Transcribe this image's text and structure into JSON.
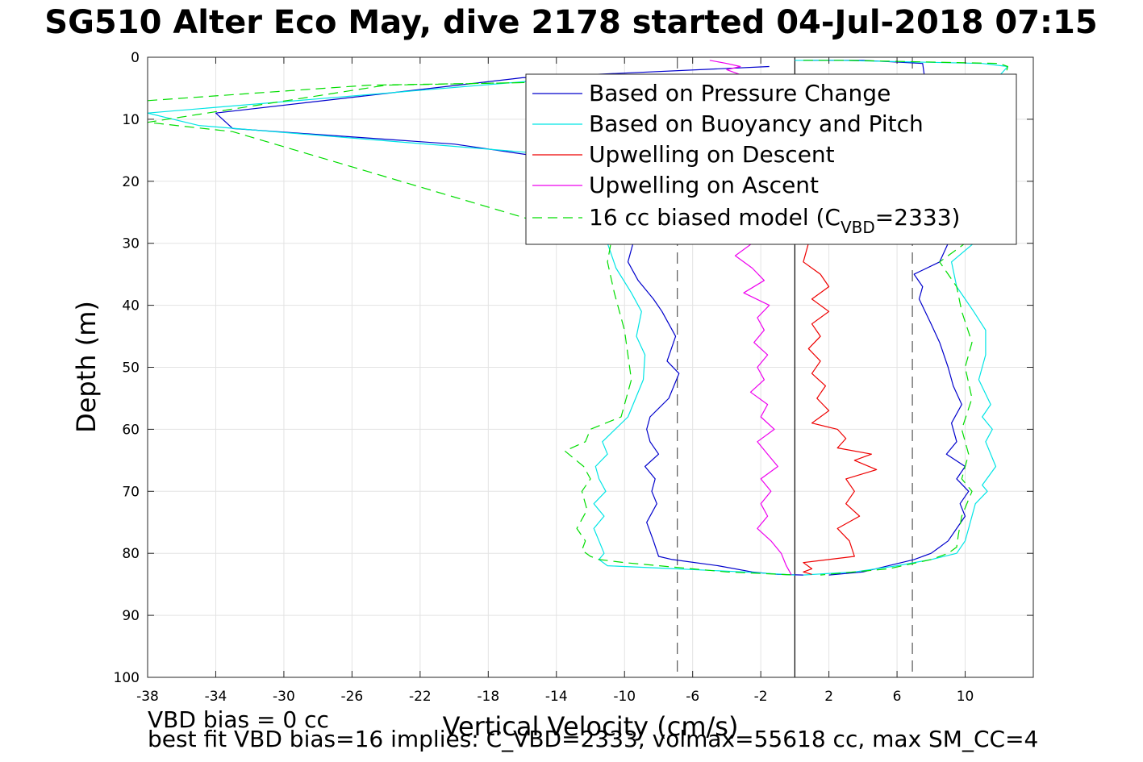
{
  "title": "SG510 Alter Eco May, dive 2178 started 04-Jul-2018 07:15",
  "notes": {
    "vbd_bias": "VBD bias = 0 cc",
    "best_fit": "best fit VBD bias=16 implies: C_VBD=2333, volmax=55618 cc, max SM_CC=4"
  },
  "chart_data": {
    "type": "line",
    "xlabel": "Vertical Velocity (cm/s)",
    "ylabel": "Depth (m)",
    "xlim": [
      -38,
      14
    ],
    "ylim": [
      0,
      100
    ],
    "y_reversed": true,
    "grid": true,
    "xticks": [
      -38,
      -34,
      -30,
      -26,
      -22,
      -18,
      -14,
      -10,
      -6,
      -2,
      2,
      6,
      10
    ],
    "yticks": [
      0,
      10,
      20,
      30,
      40,
      50,
      60,
      70,
      80,
      90,
      100
    ],
    "vertical_lines": [
      {
        "x": -6.9,
        "style": "dashed",
        "color": "#555555"
      },
      {
        "x": 0,
        "style": "solid",
        "color": "#000000"
      },
      {
        "x": 6.9,
        "style": "dashed",
        "color": "#555555"
      }
    ],
    "legend": {
      "location": "top-right",
      "entries": [
        {
          "label": "Based on Pressure Change",
          "color": "#0000cc",
          "style": "solid"
        },
        {
          "label": "Based on Buoyancy and Pitch",
          "color": "#00e5e5",
          "style": "solid"
        },
        {
          "label": "Upwelling on Descent",
          "color": "#ee0000",
          "style": "solid"
        },
        {
          "label": "Upwelling on Ascent",
          "color": "#ee00ee",
          "style": "solid"
        },
        {
          "label_prefix": "16 cc biased model (C",
          "label_sub": "VBD",
          "label_suffix": "=2333)",
          "color": "#00dd00",
          "style": "dashed"
        }
      ]
    },
    "series": [
      {
        "name": "Based on Pressure Change (descent)",
        "color": "#0000cc",
        "style": "solid",
        "x": [
          -1.5,
          -16,
          -34,
          -33,
          -20,
          -15,
          -9.5,
          -9.8,
          -9.2,
          -8.3,
          -7.8,
          -7.0,
          -7.5,
          -6.8,
          -7.4,
          -8.5,
          -8.7,
          -8.5,
          -8.0,
          -8.8,
          -8.2,
          -8.4,
          -8.1,
          -8.7,
          -8.3,
          -8.0,
          -7.2,
          -4.5,
          -2.5,
          -1.0,
          0.5
        ],
        "y": [
          1.5,
          3.3,
          9.0,
          11.5,
          14.0,
          16.0,
          30.0,
          33.0,
          36.0,
          39.0,
          41.0,
          45.0,
          49.0,
          51.0,
          55.0,
          58.0,
          60.0,
          62.0,
          64.0,
          66.0,
          68.0,
          70.0,
          72.0,
          75.0,
          78.0,
          80.5,
          81.0,
          82.0,
          83.0,
          83.4,
          83.5
        ]
      },
      {
        "name": "Based on Pressure Change (ascent)",
        "color": "#0000cc",
        "style": "solid",
        "x": [
          0.5,
          4,
          7.5,
          9.0,
          8.5,
          7.0,
          7.5,
          7.3,
          8.0,
          8.5,
          9.0,
          9.3,
          9.8,
          9.2,
          9.5,
          8.9,
          10.0,
          9.5,
          10.2,
          9.7,
          10.0,
          9.5,
          9.0,
          8.5,
          8.0,
          7.0,
          5.5,
          4.0,
          2.0
        ],
        "y": [
          0.5,
          0.5,
          1.0,
          30.0,
          33.0,
          35.0,
          37.0,
          39.0,
          43.0,
          46.0,
          50.0,
          53.0,
          56.0,
          59.0,
          62.0,
          64.0,
          66.0,
          68.0,
          70.0,
          72.0,
          74.0,
          76.0,
          78.0,
          79.0,
          80.0,
          81.0,
          82.0,
          83.0,
          83.5
        ]
      },
      {
        "name": "Based on Buoyancy and Pitch (descent)",
        "color": "#00e5e5",
        "style": "solid",
        "x": [
          -14,
          -38,
          -35,
          -15,
          -11,
          -10.5,
          -9.6,
          -9.0,
          -9.3,
          -8.8,
          -8.9,
          -9.8,
          -11.3,
          -11.0,
          -11.7,
          -11.5,
          -11.1,
          -11.8,
          -11.2,
          -11.8,
          -11.5,
          -11.2,
          -11.5,
          -11.0,
          -7.0,
          -3.0,
          0.0
        ],
        "y": [
          3.5,
          9.0,
          11.0,
          15.5,
          30.0,
          34.0,
          38.0,
          41.0,
          45.0,
          48.0,
          52.0,
          58.0,
          62.0,
          64.0,
          66.0,
          68.0,
          70.0,
          72.0,
          74.0,
          76.0,
          78.0,
          80.0,
          81.0,
          82.0,
          82.5,
          83.0,
          83.5
        ]
      },
      {
        "name": "Based on Buoyancy and Pitch (ascent)",
        "color": "#00e5e5",
        "style": "solid",
        "x": [
          0.0,
          2.5,
          11.0,
          12.5,
          12.0,
          10.5,
          9.2,
          9.5,
          10.5,
          11.2,
          11.2,
          10.8,
          11.5,
          11.0,
          11.6,
          11.2,
          11.8,
          11.0,
          11.3,
          10.6,
          10.2,
          10.0,
          9.5,
          8.0,
          6.0,
          3.5,
          0.5
        ],
        "y": [
          0.5,
          0.5,
          1.0,
          1.5,
          3.0,
          30.0,
          33.0,
          37.0,
          41.0,
          44.0,
          48.0,
          52.0,
          56.0,
          58.0,
          60.0,
          62.0,
          66.0,
          69.0,
          70.0,
          72.0,
          76.0,
          78.0,
          80.0,
          81.0,
          82.0,
          83.0,
          83.5
        ]
      },
      {
        "name": "16 cc biased model (descent)",
        "color": "#00dd00",
        "style": "dashed",
        "x": [
          -38,
          -25,
          -14,
          -24,
          -38,
          -33,
          -10.8,
          -11.0,
          -10.6,
          -10.0,
          -9.6,
          -10.2,
          -12.0,
          -12.3,
          -13.5,
          -12.4,
          -12.0,
          -12.5,
          -12.2,
          -12.8,
          -12.3,
          -12.5,
          -12.0,
          -11.5,
          -10.0,
          -4.0,
          0.0
        ],
        "y": [
          7.0,
          4.5,
          4.0,
          4.5,
          10.5,
          12.0,
          30.0,
          33.0,
          38.0,
          44.0,
          52.0,
          58.0,
          60.0,
          62.0,
          63.5,
          66.0,
          68.0,
          70.0,
          73.0,
          76.0,
          78.0,
          79.5,
          80.5,
          81.0,
          81.5,
          83.0,
          83.5
        ]
      },
      {
        "name": "16 cc biased model (ascent)",
        "color": "#00dd00",
        "style": "dashed",
        "x": [
          0.5,
          3.0,
          12.0,
          12.5,
          10.0,
          8.5,
          9.5,
          9.8,
          10.4,
          10.0,
          10.4,
          9.8,
          10.2,
          9.8,
          10.4,
          9.8,
          9.6,
          9.5,
          9.0,
          8.0,
          5.5,
          1.5
        ],
        "y": [
          0.5,
          0.5,
          1.0,
          1.5,
          30.0,
          33.0,
          37.0,
          41.0,
          46.0,
          50.0,
          55.0,
          60.0,
          64.0,
          68.0,
          70.0,
          74.0,
          77.0,
          79.0,
          80.0,
          81.0,
          82.5,
          83.5
        ]
      },
      {
        "name": "Upwelling on Descent",
        "color": "#ee0000",
        "style": "solid",
        "x": [
          0.8,
          0.5,
          1.5,
          2.0,
          1.0,
          2.0,
          1.0,
          1.5,
          0.8,
          1.5,
          1.0,
          1.8,
          1.3,
          2.0,
          1.5,
          1.0,
          2.5,
          3.0,
          2.5,
          4.5,
          3.5,
          4.8,
          3.0,
          3.5,
          3.0,
          3.8,
          2.5,
          3.2,
          3.5,
          0.5,
          1.0,
          0.5,
          1.0
        ],
        "y": [
          30.0,
          33.0,
          35.0,
          37.0,
          39.0,
          41.0,
          43.0,
          45.0,
          47.0,
          49.0,
          51.0,
          53.0,
          55.0,
          57.0,
          58.0,
          59.0,
          60.0,
          61.5,
          63.0,
          64.0,
          65.0,
          66.5,
          68.0,
          70.0,
          72.0,
          74.0,
          76.0,
          78.0,
          80.5,
          81.5,
          82.5,
          83.0,
          83.4
        ]
      },
      {
        "name": "Upwelling on Ascent (surface)",
        "color": "#ee00ee",
        "style": "solid",
        "x": [
          -5.0,
          -4.0,
          -3.2,
          -4.0,
          -3.0,
          -3.8
        ],
        "y": [
          0.5,
          1.0,
          1.5,
          2.0,
          3.0,
          4.0
        ]
      },
      {
        "name": "Upwelling on Ascent",
        "color": "#ee00ee",
        "style": "solid",
        "x": [
          -2.5,
          -3.5,
          -2.5,
          -1.8,
          -3.0,
          -1.5,
          -2.2,
          -1.8,
          -2.4,
          -1.6,
          -2.2,
          -1.8,
          -2.6,
          -1.6,
          -2.0,
          -1.2,
          -2.2,
          -1.6,
          -1.0,
          -2.0,
          -1.4,
          -2.0,
          -1.6,
          -2.2,
          -1.4,
          -0.8,
          -0.5,
          -0.2
        ],
        "y": [
          30.0,
          32.0,
          34.0,
          36.0,
          38.0,
          40.0,
          42.0,
          44.0,
          46.0,
          48.0,
          50.0,
          52.0,
          54.0,
          56.0,
          58.0,
          60.0,
          62.0,
          64.0,
          66.0,
          68.0,
          70.0,
          72.0,
          74.0,
          76.0,
          78.0,
          80.0,
          82.0,
          83.5
        ]
      }
    ]
  }
}
